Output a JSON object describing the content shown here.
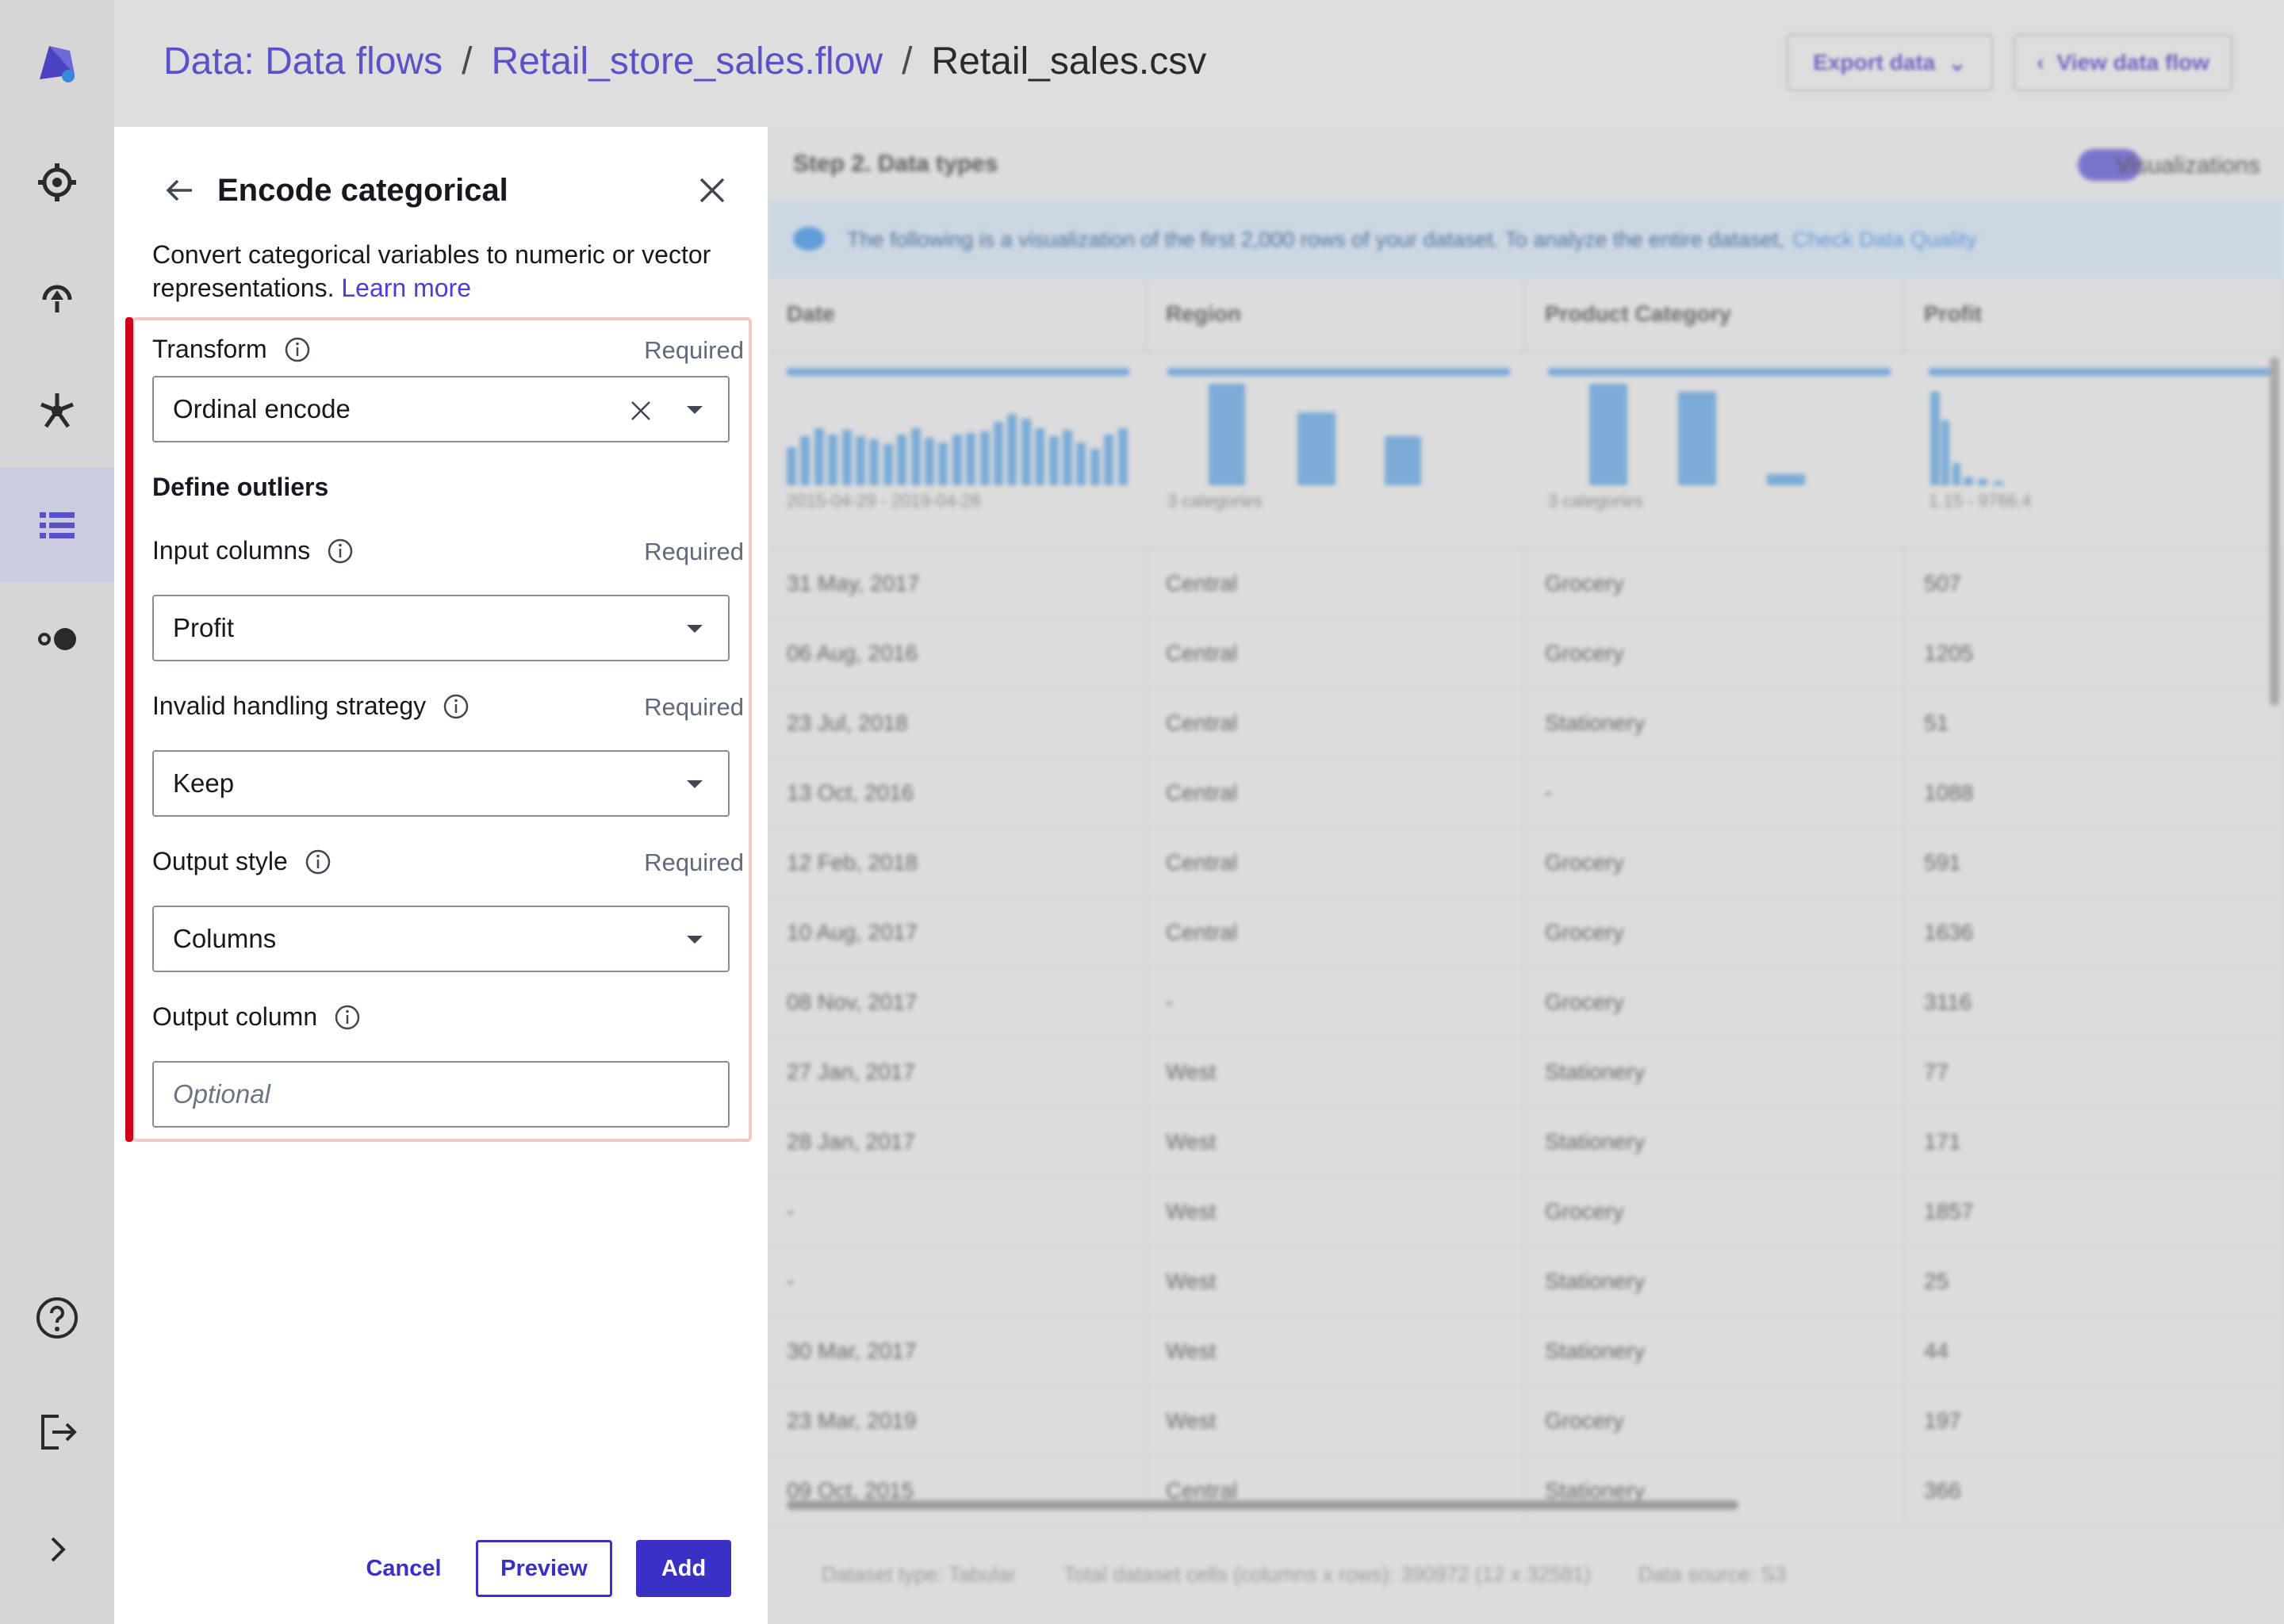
{
  "header": {
    "breadcrumbs": [
      "Data: Data flows",
      "Retail_store_sales.flow",
      "Retail_sales.csv"
    ],
    "separator": "/",
    "export_label": "Export data",
    "view_flow_label": "View data flow"
  },
  "background": {
    "step_title": "Step 2. Data types",
    "visualizations_label": "Visualizations",
    "info_text": "The following is a visualization of the first 2,000 rows of your dataset. To analyze the entire dataset,",
    "info_link": "Check Data Quality",
    "columns": [
      "Date",
      "Region",
      "Product Category",
      "Profit"
    ],
    "histogram_captions": [
      "2015-04-29 - 2019-04-28",
      "3 categories",
      "3 categories",
      "1.15 - 9766.4"
    ],
    "rows": [
      [
        "31 May, 2017",
        "Central",
        "Grocery",
        "507"
      ],
      [
        "06 Aug, 2016",
        "Central",
        "Grocery",
        "1205"
      ],
      [
        "23 Jul, 2018",
        "Central",
        "Stationery",
        "51"
      ],
      [
        "13 Oct, 2016",
        "Central",
        "-",
        "1088"
      ],
      [
        "12 Feb, 2018",
        "Central",
        "Grocery",
        "591"
      ],
      [
        "10 Aug, 2017",
        "Central",
        "Grocery",
        "1636"
      ],
      [
        "08 Nov, 2017",
        "-",
        "Grocery",
        "3116"
      ],
      [
        "27 Jan, 2017",
        "West",
        "Stationery",
        "77"
      ],
      [
        "28 Jan, 2017",
        "West",
        "Stationery",
        "171"
      ],
      [
        "-",
        "West",
        "Grocery",
        "1857"
      ],
      [
        "-",
        "West",
        "Stationery",
        "25"
      ],
      [
        "30 Mar, 2017",
        "West",
        "Stationery",
        "44"
      ],
      [
        "23 Mar, 2019",
        "West",
        "Grocery",
        "197"
      ],
      [
        "09 Oct, 2015",
        "Central",
        "Stationery",
        "366"
      ]
    ],
    "footer": [
      "Dataset type: Tabular",
      "Total dataset cells (columns x rows): 390972 (12 x 32581)",
      "Data source: S3"
    ]
  },
  "panel": {
    "title": "Encode categorical",
    "description": "Convert categorical variables to numeric or vector representations.",
    "learn_more": "Learn more",
    "required_label": "Required",
    "transform": {
      "label": "Transform",
      "value": "Ordinal encode"
    },
    "section_title": "Define outliers",
    "input_columns": {
      "label": "Input columns",
      "value": "Profit"
    },
    "invalid_handling": {
      "label": "Invalid handling strategy",
      "value": "Keep"
    },
    "output_style": {
      "label": "Output style",
      "value": "Columns"
    },
    "output_column": {
      "label": "Output column",
      "placeholder": "Optional"
    },
    "cancel_label": "Cancel",
    "preview_label": "Preview",
    "add_label": "Add"
  },
  "colors": {
    "accent": "#3b30c4",
    "link": "#4a3dd8",
    "error_bar": "#d0021b",
    "histogram": "#5b9bd5"
  }
}
